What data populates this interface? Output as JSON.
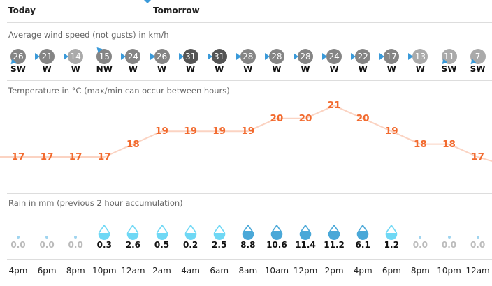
{
  "header": {
    "today": "Today",
    "tomorrow": "Tomorrow"
  },
  "sections": {
    "wind": "Average wind speed (not gusts) in km/h",
    "temp": "Temperature in °C (max/min can occur between hours)",
    "rain": "Rain in mm (previous 2 hour accumulation)"
  },
  "colors": {
    "temp": "#f26a2e",
    "arrow": "#3a9ad9",
    "rain_light": "#6fd8f5",
    "rain_heavy": "#4aa8d8"
  },
  "times": [
    "4pm",
    "6pm",
    "8pm",
    "10pm",
    "12am",
    "2am",
    "4am",
    "6am",
    "8am",
    "10am",
    "12pm",
    "2pm",
    "4pm",
    "6pm",
    "8pm",
    "10pm",
    "12am"
  ],
  "wind": [
    {
      "speed": "26",
      "dir": "SW"
    },
    {
      "speed": "21",
      "dir": "W"
    },
    {
      "speed": "14",
      "dir": "W"
    },
    {
      "speed": "15",
      "dir": "NW"
    },
    {
      "speed": "24",
      "dir": "W"
    },
    {
      "speed": "26",
      "dir": "W"
    },
    {
      "speed": "31",
      "dir": "W"
    },
    {
      "speed": "31",
      "dir": "W"
    },
    {
      "speed": "28",
      "dir": "W"
    },
    {
      "speed": "28",
      "dir": "W"
    },
    {
      "speed": "28",
      "dir": "W"
    },
    {
      "speed": "24",
      "dir": "W"
    },
    {
      "speed": "22",
      "dir": "W"
    },
    {
      "speed": "17",
      "dir": "W"
    },
    {
      "speed": "13",
      "dir": "W"
    },
    {
      "speed": "11",
      "dir": "SW"
    },
    {
      "speed": "7",
      "dir": "SW"
    }
  ],
  "temps": [
    "17",
    "17",
    "17",
    "17",
    "18",
    "19",
    "19",
    "19",
    "19",
    "20",
    "20",
    "21",
    "20",
    "19",
    "18",
    "18",
    "17"
  ],
  "rain": [
    "0.0",
    "0.0",
    "0.0",
    "0.3",
    "2.6",
    "0.5",
    "0.2",
    "2.5",
    "8.8",
    "10.6",
    "11.4",
    "11.2",
    "6.1",
    "1.2",
    "0.0",
    "0.0",
    "0.0"
  ]
}
